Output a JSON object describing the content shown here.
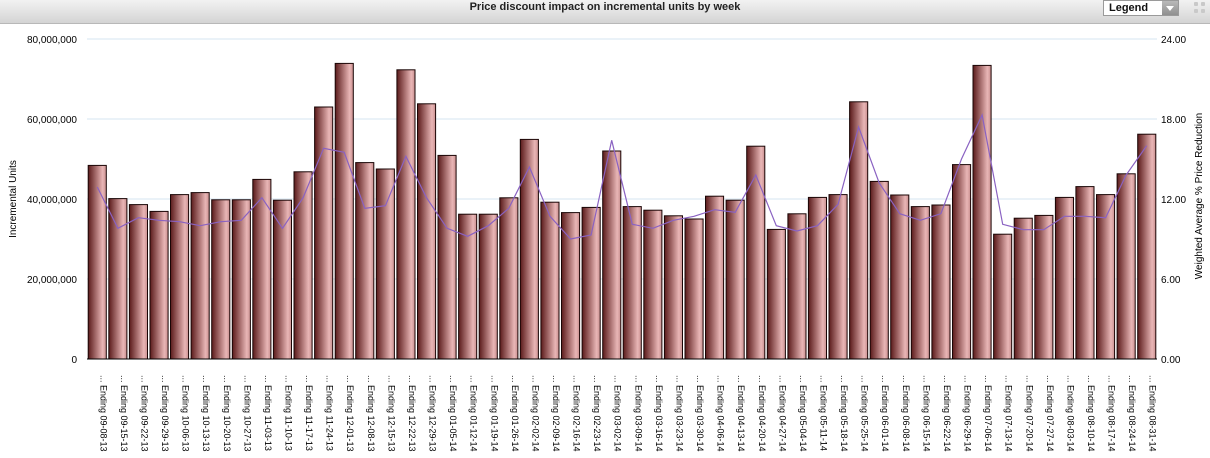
{
  "header": {
    "title": "Price discount impact on incremental units by week",
    "legend_label": "Legend"
  },
  "colors": {
    "bar_dark": "#5a1a1a",
    "bar_light": "#e9b6b6",
    "line": "#8a62c2",
    "grid": "#d6e6f2"
  },
  "icons": {
    "legend_dropdown": "chevron-down-icon",
    "grip": "grip-icon"
  },
  "chart_data": {
    "type": "bar",
    "title": "Price discount impact on incremental units by week",
    "ylabel": "Incremental Units",
    "y2label": "Weighted Average % Price Reduction",
    "ylim": [
      0,
      80000000
    ],
    "y2lim": [
      0,
      24
    ],
    "yticks": [
      "0",
      "20,000,000",
      "40,000,000",
      "60,000,000",
      "80,000,000"
    ],
    "y2ticks": [
      "0.00",
      "6.00",
      "12.00",
      "18.00",
      "24.00"
    ],
    "grid": true,
    "categories": [
      "... Ending 09-08-13",
      "... Ending 09-15-13",
      "... Ending 09-22-13",
      "... Ending 09-29-13",
      "... Ending 10-06-13",
      "... Ending 10-13-13",
      "... Ending 10-20-13",
      "... Ending 10-27-13",
      "... Ending 11-03-13",
      "... Ending 11-10-13",
      "... Ending 11-17-13",
      "... Ending 11-24-13",
      "... Ending 12-01-13",
      "... Ending 12-08-13",
      "... Ending 12-15-13",
      "... Ending 12-22-13",
      "... Ending 12-29-13",
      "... Ending 01-05-14",
      "... Ending 01-12-14",
      "... Ending 01-19-14",
      "... Ending 01-26-14",
      "... Ending 02-02-14",
      "... Ending 02-09-14",
      "... Ending 02-16-14",
      "... Ending 02-23-14",
      "... Ending 03-02-14",
      "... Ending 03-09-14",
      "... Ending 03-16-14",
      "... Ending 03-23-14",
      "... Ending 03-30-14",
      "... Ending 04-06-14",
      "... Ending 04-13-14",
      "... Ending 04-20-14",
      "... Ending 04-27-14",
      "... Ending 05-04-14",
      "... Ending 05-11-14",
      "... Ending 05-18-14",
      "... Ending 05-25-14",
      "... Ending 06-01-14",
      "... Ending 06-08-14",
      "... Ending 06-15-14",
      "... Ending 06-22-14",
      "... Ending 06-29-14",
      "... Ending 07-06-14",
      "... Ending 07-13-14",
      "... Ending 07-20-14",
      "... Ending 07-27-14",
      "... Ending 08-03-14",
      "... Ending 08-10-14",
      "... Ending 08-17-14",
      "... Ending 08-24-14",
      "... Ending 08-31-14"
    ],
    "series": [
      {
        "type": "bar",
        "values": [
          48400000,
          40100000,
          38600000,
          36900000,
          41100000,
          41600000,
          39800000,
          39800000,
          44900000,
          39700000,
          46800000,
          63000000,
          73900000,
          49100000,
          47500000,
          72300000,
          63800000,
          50900000,
          36200000,
          36200000,
          40300000,
          54900000,
          39200000,
          36600000,
          37900000,
          52000000,
          38100000,
          37200000,
          35800000,
          35000000,
          40700000,
          39700000,
          53200000,
          32400000,
          36300000,
          40400000,
          41100000,
          64300000,
          44400000,
          41000000,
          38100000,
          38500000,
          48600000,
          73400000,
          31200000,
          35200000,
          35900000,
          40400000,
          43100000,
          41100000,
          46300000,
          56200000
        ]
      },
      {
        "type": "line",
        "axis": "right",
        "values": [
          12.9,
          9.8,
          10.6,
          10.4,
          10.3,
          10.0,
          10.3,
          10.4,
          12.1,
          9.8,
          12.1,
          15.8,
          15.5,
          11.3,
          11.5,
          15.2,
          12.1,
          9.8,
          9.2,
          10.0,
          11.3,
          14.4,
          10.7,
          9.0,
          9.3,
          16.4,
          10.1,
          9.8,
          10.4,
          10.7,
          11.2,
          11.0,
          13.8,
          10.0,
          9.6,
          10.0,
          11.6,
          17.4,
          13.2,
          10.9,
          10.4,
          10.9,
          15.0,
          18.3,
          10.1,
          9.7,
          9.7,
          10.7,
          10.7,
          10.6,
          13.8,
          16.0
        ]
      }
    ]
  }
}
